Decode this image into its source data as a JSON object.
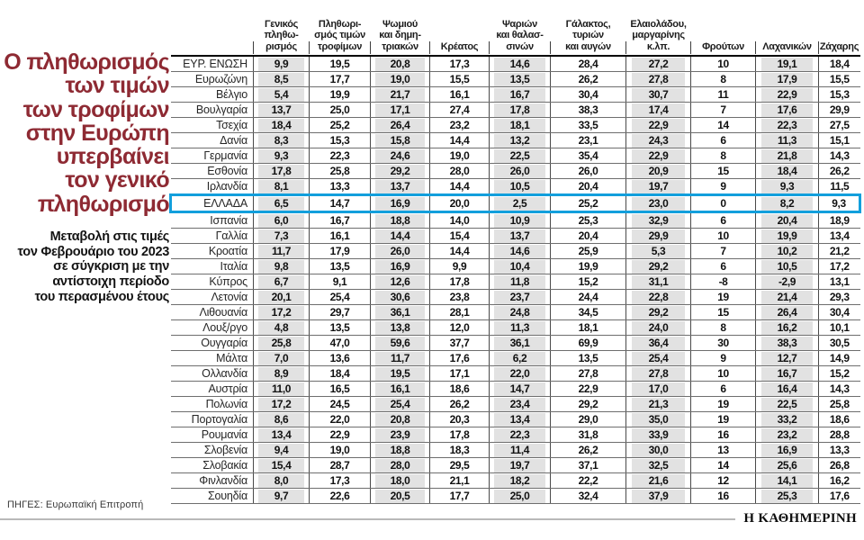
{
  "panel": {
    "title": "Ο πληθωρισμός\nτων τιμών\nτων τροφίμων\nστην Ευρώπη\nυπερβαίνει\nτον γενικό\nπληθωρισμό",
    "subtitle": "Μεταβολή στις τιμές\nτον Φεβρουάριο του 2023\nσε σύγκριση με την\nαντίστοιχη περίοδο\nτου περασμένου έτους",
    "source": "ΠΗΓΕΣ: Ευρωπαϊκή Επιτροπή"
  },
  "branding": {
    "logo": "Η ΚΑΘΗΜΕΡΙΝΗ"
  },
  "colors": {
    "title_red": "#8e2a33",
    "highlight_blue": "#129fdc",
    "cell_shade": "#e2e2e2"
  },
  "chart_data": {
    "type": "table",
    "columns": [
      "Γενικός\nπληθω-\nρισμός",
      "Πληθωρι-\nσμός τιμών\nτροφίμων",
      "Ψωμιού\nκαι δημη-\nτριακών",
      "Κρέατος",
      "Ψαριών\nκαι θαλασ-\nσινών",
      "Γάλακτος,\nτυριών\nκαι αυγών",
      "Ελαιολάδου,\nμαργαρίνης\nκ.λπ.",
      "Φρούτων",
      "Λαχανικών",
      "Ζάχαρης"
    ],
    "rows": [
      {
        "country": "ΕΥΡ. ΕΝΩΣΗ",
        "values": [
          "9,9",
          "19,5",
          "20,8",
          "17,3",
          "14,6",
          "28,4",
          "27,2",
          "10",
          "19,1",
          "18,4"
        ]
      },
      {
        "country": "Ευρωζώνη",
        "values": [
          "8,5",
          "17,7",
          "19,0",
          "15,5",
          "13,5",
          "26,2",
          "27,8",
          "8",
          "17,9",
          "15,5"
        ]
      },
      {
        "country": "Βέλγιο",
        "values": [
          "5,4",
          "19,9",
          "21,7",
          "16,1",
          "16,7",
          "30,4",
          "30,7",
          "11",
          "22,9",
          "15,3"
        ]
      },
      {
        "country": "Βουλγαρία",
        "values": [
          "13,7",
          "25,0",
          "17,1",
          "27,4",
          "17,8",
          "38,3",
          "17,4",
          "7",
          "17,6",
          "29,9"
        ]
      },
      {
        "country": "Τσεχία",
        "values": [
          "18,4",
          "25,2",
          "26,4",
          "23,2",
          "18,1",
          "33,5",
          "22,9",
          "14",
          "22,3",
          "27,5"
        ]
      },
      {
        "country": "Δανία",
        "values": [
          "8,3",
          "15,3",
          "15,8",
          "14,4",
          "13,2",
          "23,1",
          "24,3",
          "6",
          "11,3",
          "15,1"
        ]
      },
      {
        "country": "Γερμανία",
        "values": [
          "9,3",
          "22,3",
          "24,6",
          "19,0",
          "22,5",
          "35,4",
          "22,9",
          "8",
          "21,8",
          "14,3"
        ]
      },
      {
        "country": "Εσθονία",
        "values": [
          "17,8",
          "25,8",
          "29,2",
          "28,0",
          "26,0",
          "26,0",
          "20,9",
          "15",
          "18,4",
          "26,2"
        ]
      },
      {
        "country": "Ιρλανδία",
        "values": [
          "8,1",
          "13,3",
          "13,7",
          "14,4",
          "10,5",
          "20,4",
          "19,7",
          "9",
          "9,3",
          "11,5"
        ]
      },
      {
        "country": "ΕΛΛΑΔΑ",
        "highlight": true,
        "values": [
          "6,5",
          "14,7",
          "16,9",
          "20,0",
          "2,5",
          "25,2",
          "23,0",
          "0",
          "8,2",
          "9,3"
        ]
      },
      {
        "country": "Ισπανία",
        "values": [
          "6,0",
          "16,7",
          "18,8",
          "14,0",
          "10,9",
          "25,3",
          "32,9",
          "6",
          "20,4",
          "18,9"
        ]
      },
      {
        "country": "Γαλλία",
        "values": [
          "7,3",
          "16,1",
          "14,4",
          "15,4",
          "13,7",
          "20,4",
          "29,9",
          "10",
          "19,9",
          "13,4"
        ]
      },
      {
        "country": "Κροατία",
        "values": [
          "11,7",
          "17,9",
          "26,0",
          "14,4",
          "14,6",
          "25,9",
          "5,3",
          "7",
          "10,2",
          "21,2"
        ]
      },
      {
        "country": "Ιταλία",
        "values": [
          "9,8",
          "13,5",
          "16,9",
          "9,9",
          "10,4",
          "19,9",
          "29,2",
          "6",
          "10,5",
          "17,2"
        ]
      },
      {
        "country": "Κύπρος",
        "values": [
          "6,7",
          "9,1",
          "12,6",
          "17,8",
          "11,8",
          "15,2",
          "31,1",
          "-8",
          "-2,9",
          "13,1"
        ]
      },
      {
        "country": "Λετονία",
        "values": [
          "20,1",
          "25,4",
          "30,6",
          "23,8",
          "23,7",
          "24,4",
          "22,8",
          "19",
          "21,4",
          "29,3"
        ]
      },
      {
        "country": "Λιθουανία",
        "values": [
          "17,2",
          "29,7",
          "36,1",
          "28,1",
          "24,8",
          "34,5",
          "29,2",
          "15",
          "26,4",
          "30,4"
        ]
      },
      {
        "country": "Λουξ/ργο",
        "values": [
          "4,8",
          "13,5",
          "13,8",
          "12,0",
          "11,3",
          "18,1",
          "24,0",
          "8",
          "16,2",
          "10,1"
        ]
      },
      {
        "country": "Ουγγαρία",
        "values": [
          "25,8",
          "47,0",
          "59,6",
          "37,7",
          "36,1",
          "69,9",
          "36,4",
          "30",
          "38,3",
          "30,5"
        ]
      },
      {
        "country": "Μάλτα",
        "values": [
          "7,0",
          "13,6",
          "11,7",
          "17,6",
          "6,2",
          "13,5",
          "25,4",
          "9",
          "12,7",
          "14,9"
        ]
      },
      {
        "country": "Ολλανδία",
        "values": [
          "8,9",
          "18,4",
          "19,5",
          "17,1",
          "22,0",
          "27,8",
          "27,8",
          "10",
          "16,7",
          "15,2"
        ]
      },
      {
        "country": "Αυστρία",
        "values": [
          "11,0",
          "16,5",
          "16,1",
          "18,6",
          "14,7",
          "22,9",
          "17,0",
          "6",
          "16,4",
          "14,3"
        ]
      },
      {
        "country": "Πολωνία",
        "values": [
          "17,2",
          "24,5",
          "25,4",
          "26,2",
          "23,4",
          "29,2",
          "21,3",
          "19",
          "22,5",
          "25,8"
        ]
      },
      {
        "country": "Πορτογαλία",
        "values": [
          "8,6",
          "22,0",
          "20,8",
          "20,3",
          "13,4",
          "29,0",
          "35,0",
          "19",
          "33,2",
          "18,6"
        ]
      },
      {
        "country": "Ρουμανία",
        "values": [
          "13,4",
          "22,9",
          "23,9",
          "17,8",
          "22,3",
          "31,8",
          "33,9",
          "16",
          "23,2",
          "28,8"
        ]
      },
      {
        "country": "Σλοβενία",
        "values": [
          "9,4",
          "19,0",
          "18,8",
          "18,3",
          "11,4",
          "26,2",
          "30,0",
          "13",
          "16,9",
          "13,3"
        ]
      },
      {
        "country": "Σλοβακία",
        "values": [
          "15,4",
          "28,7",
          "28,0",
          "29,5",
          "19,7",
          "37,1",
          "32,5",
          "14",
          "25,6",
          "26,8"
        ]
      },
      {
        "country": "Φινλανδία",
        "values": [
          "8,0",
          "17,3",
          "18,0",
          "21,1",
          "18,2",
          "22,2",
          "21,6",
          "12",
          "14,1",
          "16,2"
        ]
      },
      {
        "country": "Σουηδία",
        "values": [
          "9,7",
          "22,6",
          "20,5",
          "17,7",
          "25,0",
          "32,4",
          "37,9",
          "16",
          "25,3",
          "17,6"
        ]
      }
    ]
  }
}
